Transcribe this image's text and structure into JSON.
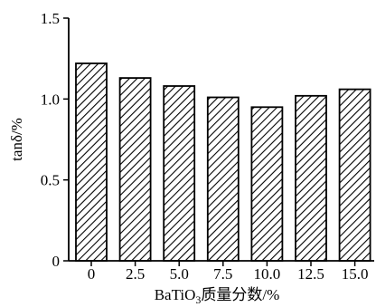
{
  "chart_data": {
    "type": "bar",
    "categories": [
      "0",
      "2.5",
      "5.0",
      "7.5",
      "10.0",
      "12.5",
      "15.0"
    ],
    "values": [
      1.22,
      1.13,
      1.08,
      1.01,
      0.95,
      1.02,
      1.06
    ],
    "ylim": [
      0,
      1.5
    ],
    "yticks": [
      0,
      0.5,
      1.0,
      1.5
    ],
    "ytick_labels": [
      "0",
      "0.5",
      "1.0",
      "1.5"
    ],
    "xlabel": "BaTiO3质量分数/%",
    "xlabel_parts": {
      "pre": "BaTiO",
      "sub": "3",
      "post": "质量分数/%"
    },
    "ylabel": "tanδ/%",
    "grid": false,
    "legend": "none",
    "bar_fill": "diagonal-hatch",
    "colors": {
      "stroke": "#000000",
      "hatch": "#000000",
      "background": "#ffffff"
    }
  }
}
